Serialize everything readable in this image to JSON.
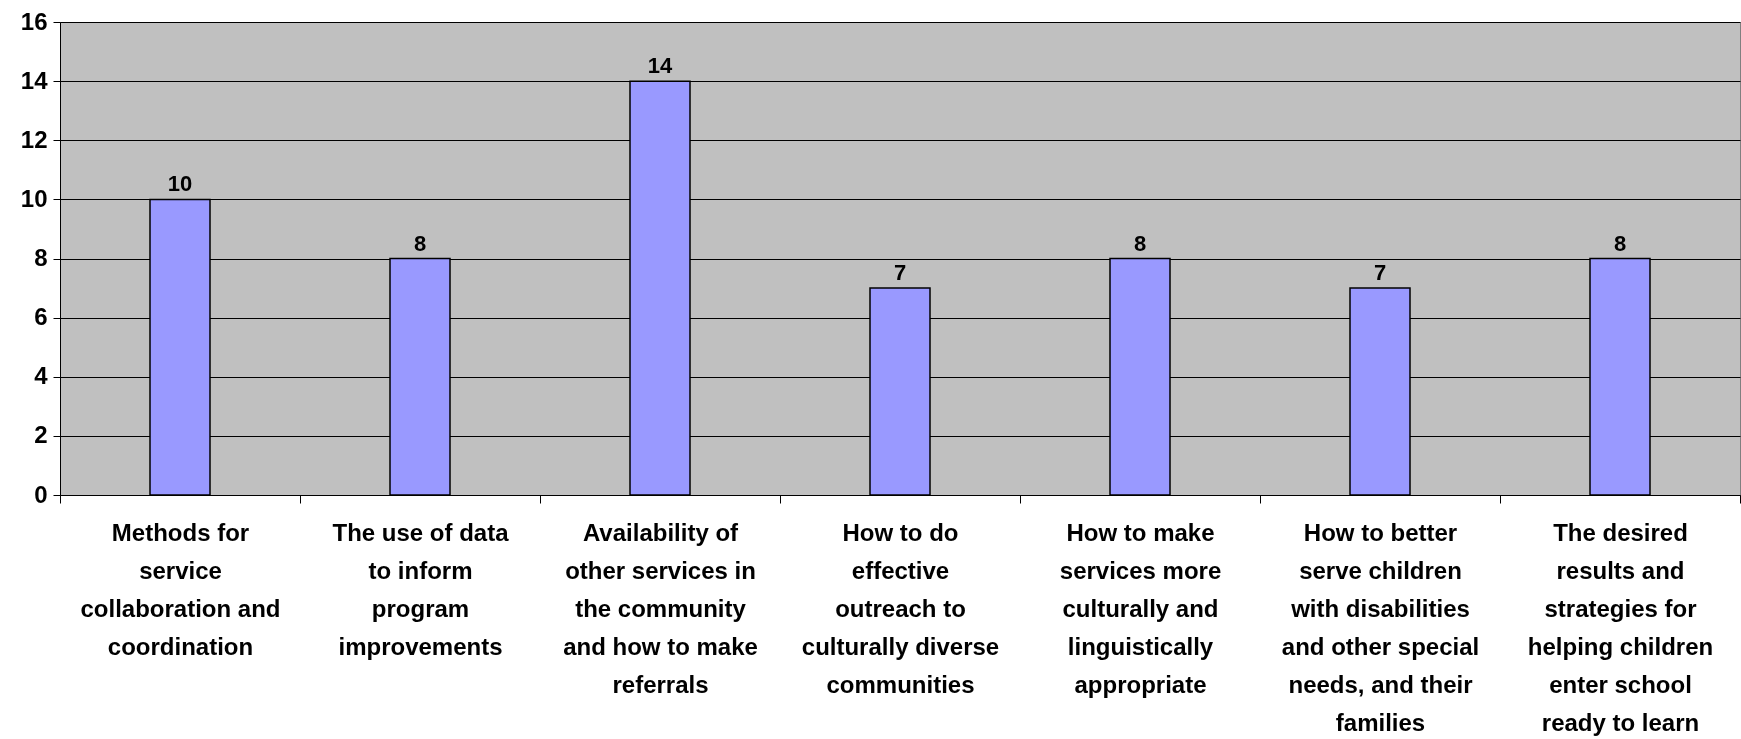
{
  "chart_data": {
    "type": "bar",
    "categories": [
      "Methods for service collaboration and coordination",
      "The use of data to inform program improvements",
      "Availability of other services in the community and how to make referrals",
      "How to do effective outreach to culturally diverse communities",
      "How to make services more culturally and linguistically appropriate",
      "How to better serve children with disabilities and other special needs, and their families",
      "The desired results and strategies for helping children enter school ready to learn"
    ],
    "values": [
      10,
      8,
      14,
      7,
      8,
      7,
      8
    ],
    "color": "#9999ff",
    "ylim": [
      0,
      16
    ],
    "yticks": [
      0,
      2,
      4,
      6,
      8,
      10,
      12,
      14,
      16
    ],
    "grid": "y",
    "data_labels": true
  }
}
